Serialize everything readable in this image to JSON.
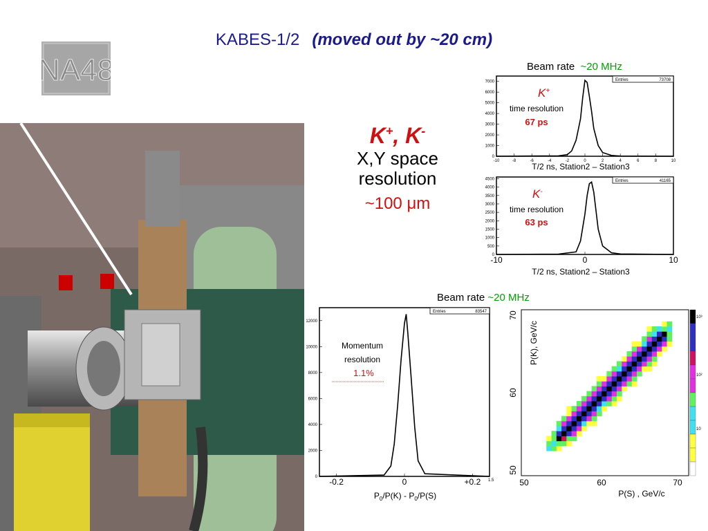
{
  "title": {
    "main": "KABES-1/2",
    "sub": "(moved out by ~20 cm)"
  },
  "logo": {
    "text": "NA48"
  },
  "space": {
    "particles_main": "K",
    "plus": "+",
    "sep": ", ",
    "minus": "-",
    "line1": "X,Y  space",
    "line2": "resolution",
    "value": "~100 μm"
  },
  "beam_top": {
    "label": "Beam rate",
    "value": "~20 MHz"
  },
  "beam_bottom": {
    "label": "Beam rate",
    "value": "~20 MHz"
  },
  "plot1": {
    "particle": "K",
    "charge": "+",
    "desc": "time resolution",
    "value": "67 ps",
    "xlabel": "T/2 ns, Station2 – Station3",
    "entries_label": "Entries",
    "entries_value": "73708",
    "yticks": [
      "7000",
      "6000",
      "5000",
      "4000",
      "3000",
      "2000",
      "1000",
      "0"
    ],
    "xticks": [
      "-10",
      "-8",
      "-6",
      "-4",
      "-2",
      "0",
      "2",
      "4",
      "6",
      "8",
      "10"
    ]
  },
  "plot2": {
    "particle": "K",
    "charge": "-",
    "desc": "time resolution",
    "value": "63 ps",
    "xlabel": "T/2 ns, Station2 – Station3",
    "entries_label": "Entries",
    "entries_value": "41165",
    "yticks": [
      "4500",
      "4000",
      "3500",
      "3000",
      "2500",
      "2000",
      "1500",
      "1000",
      "500",
      "0"
    ],
    "xticks": [
      "-10",
      "0",
      "10"
    ]
  },
  "plot3": {
    "desc1": "Momentum",
    "desc2": "resolution",
    "value": "1.1%",
    "xlabel_a": "P",
    "xlabel_b": "0",
    "xlabel_c": "/P(K)   - P",
    "xlabel_d": "0",
    "xlabel_e": "/P(S)",
    "entries_label": "Entries",
    "entries_value": "83547",
    "yticks": [
      "12000",
      "10000",
      "8000",
      "6000",
      "4000",
      "2000",
      "0"
    ],
    "xticks": [
      "-0.2",
      "0",
      "+0.2"
    ],
    "xtick_extra": "1.5"
  },
  "plot4": {
    "ylabel": "P(K), GeV/c",
    "xlabel": "P(S) , GeV/c",
    "xticks": [
      "50",
      "60",
      "70"
    ],
    "yticks": [
      "70",
      "60",
      "50"
    ],
    "scale": [
      "10³",
      "10²",
      "10"
    ]
  },
  "chart_data": [
    {
      "type": "line",
      "title": "",
      "xlabel": "T/2 ns, Station2 – Station3",
      "xlim": [
        -10,
        10
      ],
      "ylim": [
        0,
        7500
      ],
      "x": [
        -10,
        -3,
        -2,
        -1.5,
        -1,
        -0.5,
        -0.25,
        0,
        0.25,
        0.5,
        0.75,
        1,
        1.5,
        2,
        3,
        4,
        10
      ],
      "values": [
        0,
        40,
        150,
        500,
        1500,
        3500,
        5500,
        7100,
        6900,
        5600,
        4200,
        2600,
        1000,
        350,
        80,
        20,
        0
      ]
    },
    {
      "type": "line",
      "title": "",
      "xlabel": "T/2 ns, Station2 – Station3",
      "xlim": [
        -10,
        10
      ],
      "ylim": [
        0,
        4600
      ],
      "x": [
        -10,
        -3,
        -1,
        -0.5,
        0,
        0.25,
        0.5,
        0.75,
        1,
        1.25,
        1.5,
        2,
        3,
        4,
        10
      ],
      "values": [
        0,
        20,
        150,
        800,
        2400,
        3500,
        4200,
        4300,
        3700,
        2600,
        1500,
        500,
        100,
        30,
        0
      ]
    },
    {
      "type": "line",
      "title": "",
      "xlabel": "P0/P(K) - P0/P(S)",
      "xlim": [
        -0.25,
        0.25
      ],
      "ylim": [
        0,
        13000
      ],
      "x": [
        -0.25,
        -0.06,
        -0.04,
        -0.03,
        -0.02,
        -0.01,
        0,
        0.005,
        0.01,
        0.02,
        0.03,
        0.04,
        0.06,
        0.25
      ],
      "values": [
        0,
        100,
        800,
        2500,
        5500,
        9000,
        11800,
        12500,
        11000,
        7500,
        3800,
        1200,
        200,
        0
      ]
    },
    {
      "type": "heatmap",
      "title": "",
      "xlabel": "P(S) , GeV/c",
      "ylabel": "P(K), GeV/c",
      "xlim": [
        50,
        70
      ],
      "ylim": [
        50,
        70
      ],
      "description_points": [
        [
          55,
          55
        ],
        [
          60,
          60
        ],
        [
          65,
          65
        ]
      ]
    }
  ]
}
